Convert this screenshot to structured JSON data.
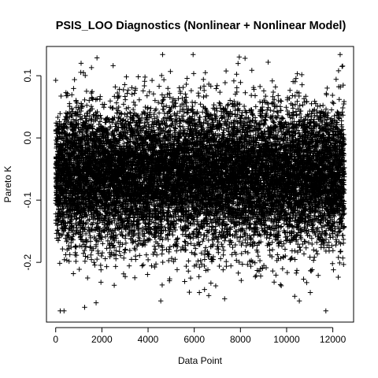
{
  "chart_data": {
    "type": "scatter",
    "title": "PSIS_LOO Diagnostics (Nonlinear + Nonlinear Model)",
    "xlabel": "Data Point",
    "ylabel": "Pareto K",
    "xlim": [
      -400,
      12900
    ],
    "ylim": [
      -0.296,
      0.147
    ],
    "x_ticks": [
      0,
      2000,
      4000,
      6000,
      8000,
      10000,
      12000
    ],
    "x_tick_labels": [
      "0",
      "2000",
      "4000",
      "6000",
      "8000",
      "10000",
      "12000"
    ],
    "y_ticks": [
      -0.2,
      -0.1,
      0.0,
      0.1
    ],
    "y_tick_labels": [
      "-0.2",
      "-0.1",
      "0.0",
      "0.1"
    ],
    "marker": "plus",
    "n_points": 12500,
    "distribution": {
      "mean": -0.06,
      "sd": 0.055,
      "min": -0.278,
      "max": 0.134
    },
    "outliers": [
      {
        "x": 11700,
        "y": -0.278
      },
      {
        "x": 1750,
        "y": -0.265
      },
      {
        "x": 10550,
        "y": -0.262
      },
      {
        "x": 4550,
        "y": -0.262
      },
      {
        "x": 5950,
        "y": 0.134
      },
      {
        "x": 7950,
        "y": 0.13
      },
      {
        "x": 8200,
        "y": 0.128
      },
      {
        "x": 1100,
        "y": 0.12
      },
      {
        "x": 1550,
        "y": 0.113
      },
      {
        "x": 12250,
        "y": 0.108
      }
    ]
  }
}
